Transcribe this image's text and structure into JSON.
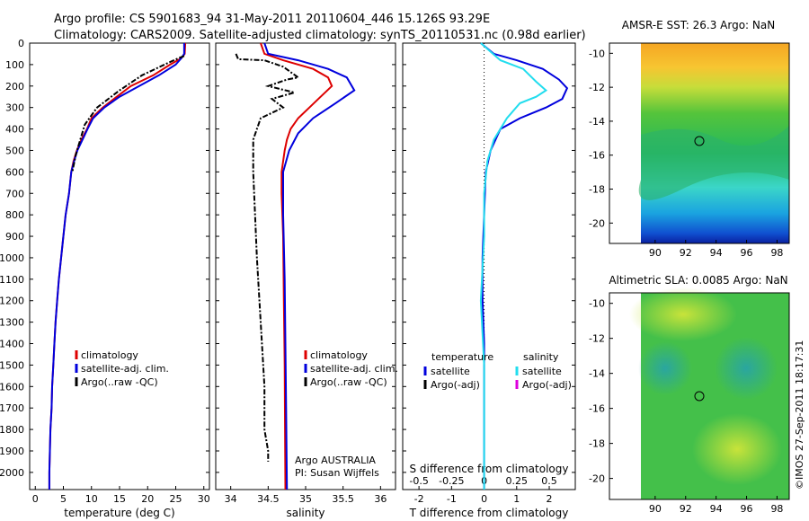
{
  "header": {
    "line1": "Argo profile: CS 5901683_94 31-May-2011 20110604_446 15.126S 93.29E",
    "line2": "Climatology: CARS2009. Satellite-adjusted climatology: synTS_20110531.nc (0.98d earlier)"
  },
  "colors": {
    "climatology": "#dd0000",
    "satellite": "#0000dd",
    "argo": "#000000",
    "satellite_sal": "#22ddee",
    "argo_adj_sal": "#dd00dd"
  },
  "chart_data": [
    {
      "type": "line",
      "id": "temperature",
      "xlabel": "temperature (deg C)",
      "xlim": [
        -1,
        31
      ],
      "ylim": [
        2080,
        0
      ],
      "xticks": [
        "0",
        "5",
        "10",
        "15",
        "20",
        "25",
        "30"
      ],
      "yticks": [
        "0",
        "100",
        "200",
        "300",
        "400",
        "500",
        "600",
        "700",
        "800",
        "900",
        "1000",
        "1100",
        "1200",
        "1300",
        "1400",
        "1500",
        "1600",
        "1700",
        "1800",
        "1900",
        "2000"
      ],
      "legend": [
        "climatology",
        "satellite-adj. clim.",
        "Argo(..raw -QC)"
      ],
      "series": [
        {
          "name": "climatology",
          "points": [
            [
              26.7,
              0
            ],
            [
              26.6,
              50
            ],
            [
              26,
              70
            ],
            [
              24,
              100
            ],
            [
              21,
              150
            ],
            [
              17,
              200
            ],
            [
              14.5,
              250
            ],
            [
              12,
              300
            ],
            [
              10,
              350
            ],
            [
              9.2,
              400
            ],
            [
              8.2,
              450
            ],
            [
              7.4,
              500
            ],
            [
              6.8,
              550
            ],
            [
              6.4,
              600
            ],
            [
              6,
              700
            ],
            [
              5.4,
              800
            ],
            [
              5,
              900
            ],
            [
              4.6,
              1000
            ],
            [
              4.2,
              1100
            ],
            [
              3.9,
              1200
            ],
            [
              3.6,
              1300
            ],
            [
              3.4,
              1400
            ],
            [
              3.2,
              1500
            ],
            [
              3,
              1600
            ],
            [
              2.9,
              1700
            ],
            [
              2.7,
              1800
            ],
            [
              2.6,
              1900
            ],
            [
              2.5,
              2000
            ],
            [
              2.5,
              2080
            ]
          ]
        },
        {
          "name": "satellite-adj. clim.",
          "points": [
            [
              26.5,
              0
            ],
            [
              26.5,
              50
            ],
            [
              26,
              70
            ],
            [
              25,
              100
            ],
            [
              22,
              150
            ],
            [
              18.5,
              200
            ],
            [
              15,
              250
            ],
            [
              12.3,
              300
            ],
            [
              10.3,
              350
            ],
            [
              9.3,
              400
            ],
            [
              8.4,
              450
            ],
            [
              7.5,
              500
            ],
            [
              6.9,
              550
            ],
            [
              6.4,
              600
            ],
            [
              6,
              700
            ],
            [
              5.4,
              800
            ],
            [
              5,
              900
            ],
            [
              4.6,
              1000
            ],
            [
              4.2,
              1100
            ],
            [
              3.9,
              1200
            ],
            [
              3.6,
              1300
            ],
            [
              3.4,
              1400
            ],
            [
              3.2,
              1500
            ],
            [
              3,
              1600
            ],
            [
              2.9,
              1700
            ],
            [
              2.7,
              1800
            ],
            [
              2.6,
              1900
            ],
            [
              2.5,
              2000
            ],
            [
              2.5,
              2080
            ]
          ]
        },
        {
          "name": "Argo(..raw -QC)",
          "points": [
            [
              26.5,
              60
            ],
            [
              25.5,
              70
            ],
            [
              23,
              100
            ],
            [
              19,
              150
            ],
            [
              15,
              220
            ],
            [
              14,
              240
            ],
            [
              11,
              300
            ],
            [
              8.8,
              380
            ],
            [
              8,
              450
            ],
            [
              7.2,
              520
            ],
            [
              6.6,
              600
            ]
          ]
        }
      ]
    },
    {
      "type": "line",
      "id": "salinity",
      "xlabel": "salinity",
      "xlim": [
        33.8,
        36.2
      ],
      "ylim": [
        2080,
        0
      ],
      "xticks": [
        "34",
        "34.5",
        "35",
        "35.5",
        "36"
      ],
      "legend": [
        "climatology",
        "satellite-adj. clim.",
        "Argo(..raw -QC)"
      ],
      "annotation": [
        "Argo AUSTRALIA",
        "PI: Susan Wijffels"
      ],
      "series": [
        {
          "name": "climatology",
          "points": [
            [
              34.4,
              0
            ],
            [
              34.45,
              50
            ],
            [
              34.7,
              80
            ],
            [
              35.1,
              120
            ],
            [
              35.3,
              160
            ],
            [
              35.35,
              200
            ],
            [
              35.2,
              250
            ],
            [
              35.05,
              300
            ],
            [
              34.9,
              350
            ],
            [
              34.8,
              400
            ],
            [
              34.75,
              450
            ],
            [
              34.72,
              500
            ],
            [
              34.68,
              600
            ],
            [
              34.68,
              700
            ],
            [
              34.7,
              900
            ],
            [
              34.71,
              1200
            ],
            [
              34.72,
              1500
            ],
            [
              34.73,
              2080
            ]
          ]
        },
        {
          "name": "satellite-adj. clim.",
          "points": [
            [
              34.45,
              0
            ],
            [
              34.5,
              50
            ],
            [
              34.9,
              80
            ],
            [
              35.3,
              120
            ],
            [
              35.55,
              160
            ],
            [
              35.65,
              220
            ],
            [
              35.4,
              280
            ],
            [
              35.1,
              350
            ],
            [
              34.9,
              420
            ],
            [
              34.78,
              500
            ],
            [
              34.7,
              600
            ],
            [
              34.7,
              800
            ],
            [
              34.72,
              1100
            ],
            [
              34.73,
              1400
            ],
            [
              34.74,
              1700
            ],
            [
              34.75,
              2080
            ]
          ]
        },
        {
          "name": "Argo(..raw -QC)",
          "points": [
            [
              34.07,
              50
            ],
            [
              34.1,
              75
            ],
            [
              34.45,
              80
            ],
            [
              34.7,
              110
            ],
            [
              34.9,
              160
            ],
            [
              34.75,
              170
            ],
            [
              34.5,
              200
            ],
            [
              34.85,
              230
            ],
            [
              34.55,
              260
            ],
            [
              34.7,
              300
            ],
            [
              34.4,
              350
            ],
            [
              34.35,
              400
            ],
            [
              34.3,
              450
            ],
            [
              34.3,
              600
            ],
            [
              34.35,
              1000
            ],
            [
              34.4,
              1300
            ],
            [
              34.45,
              1600
            ],
            [
              34.45,
              1800
            ],
            [
              34.5,
              1900
            ],
            [
              34.5,
              1950
            ]
          ]
        }
      ]
    },
    {
      "type": "line",
      "id": "difference",
      "xlabel": "T difference from climatology",
      "xlabel_top": "S difference from climatology",
      "xlim": [
        -2.5,
        2.8
      ],
      "ylim": [
        2080,
        0
      ],
      "xticks": [
        "-2",
        "-1",
        "0",
        "1",
        "2"
      ],
      "xticks_s": [
        "-0.5",
        "-0.25",
        "0",
        "0.25",
        "0.5"
      ],
      "legend_headers": [
        "temperature",
        "salinity"
      ],
      "legend_left": [
        "satellite",
        "Argo(-adj)"
      ],
      "legend_right": [
        "satellite",
        "Argo(-adj)"
      ],
      "series": [
        {
          "name": "temperature satellite",
          "points": [
            [
              -0.1,
              0
            ],
            [
              0.3,
              50
            ],
            [
              1,
              80
            ],
            [
              1.8,
              120
            ],
            [
              2.3,
              170
            ],
            [
              2.55,
              210
            ],
            [
              2.4,
              260
            ],
            [
              1.9,
              300
            ],
            [
              1.1,
              350
            ],
            [
              0.5,
              400
            ],
            [
              0.2,
              500
            ],
            [
              0.05,
              600
            ],
            [
              0,
              800
            ],
            [
              -0.05,
              1000
            ],
            [
              -0.05,
              1200
            ],
            [
              0,
              1400
            ],
            [
              0,
              2080
            ]
          ]
        },
        {
          "name": "salinity satellite",
          "points": [
            [
              -0.1,
              0
            ],
            [
              0.2,
              40
            ],
            [
              0.5,
              80
            ],
            [
              1.2,
              120
            ],
            [
              1.6,
              180
            ],
            [
              1.9,
              220
            ],
            [
              1.6,
              250
            ],
            [
              1.1,
              280
            ],
            [
              0.7,
              350
            ],
            [
              0.3,
              450
            ],
            [
              0.1,
              550
            ],
            [
              0,
              700
            ],
            [
              0,
              900
            ],
            [
              -0.1,
              1200
            ],
            [
              0,
              1500
            ],
            [
              0,
              2080
            ]
          ]
        }
      ]
    }
  ],
  "maps": [
    {
      "title": "AMSR-E SST: 26.3  Argo: NaN",
      "xticks": [
        "90",
        "92",
        "94",
        "96",
        "98"
      ],
      "yticks": [
        "-10",
        "-12",
        "-14",
        "-16",
        "-18",
        "-20"
      ]
    },
    {
      "title": "Altimetric SLA: 0.0085  Argo: NaN",
      "xticks": [
        "90",
        "92",
        "94",
        "96",
        "98"
      ],
      "yticks": [
        "-10",
        "-12",
        "-14",
        "-16",
        "-18",
        "-20"
      ]
    }
  ],
  "footer": "©IMOS 27-Sep-2011 18:17:31"
}
